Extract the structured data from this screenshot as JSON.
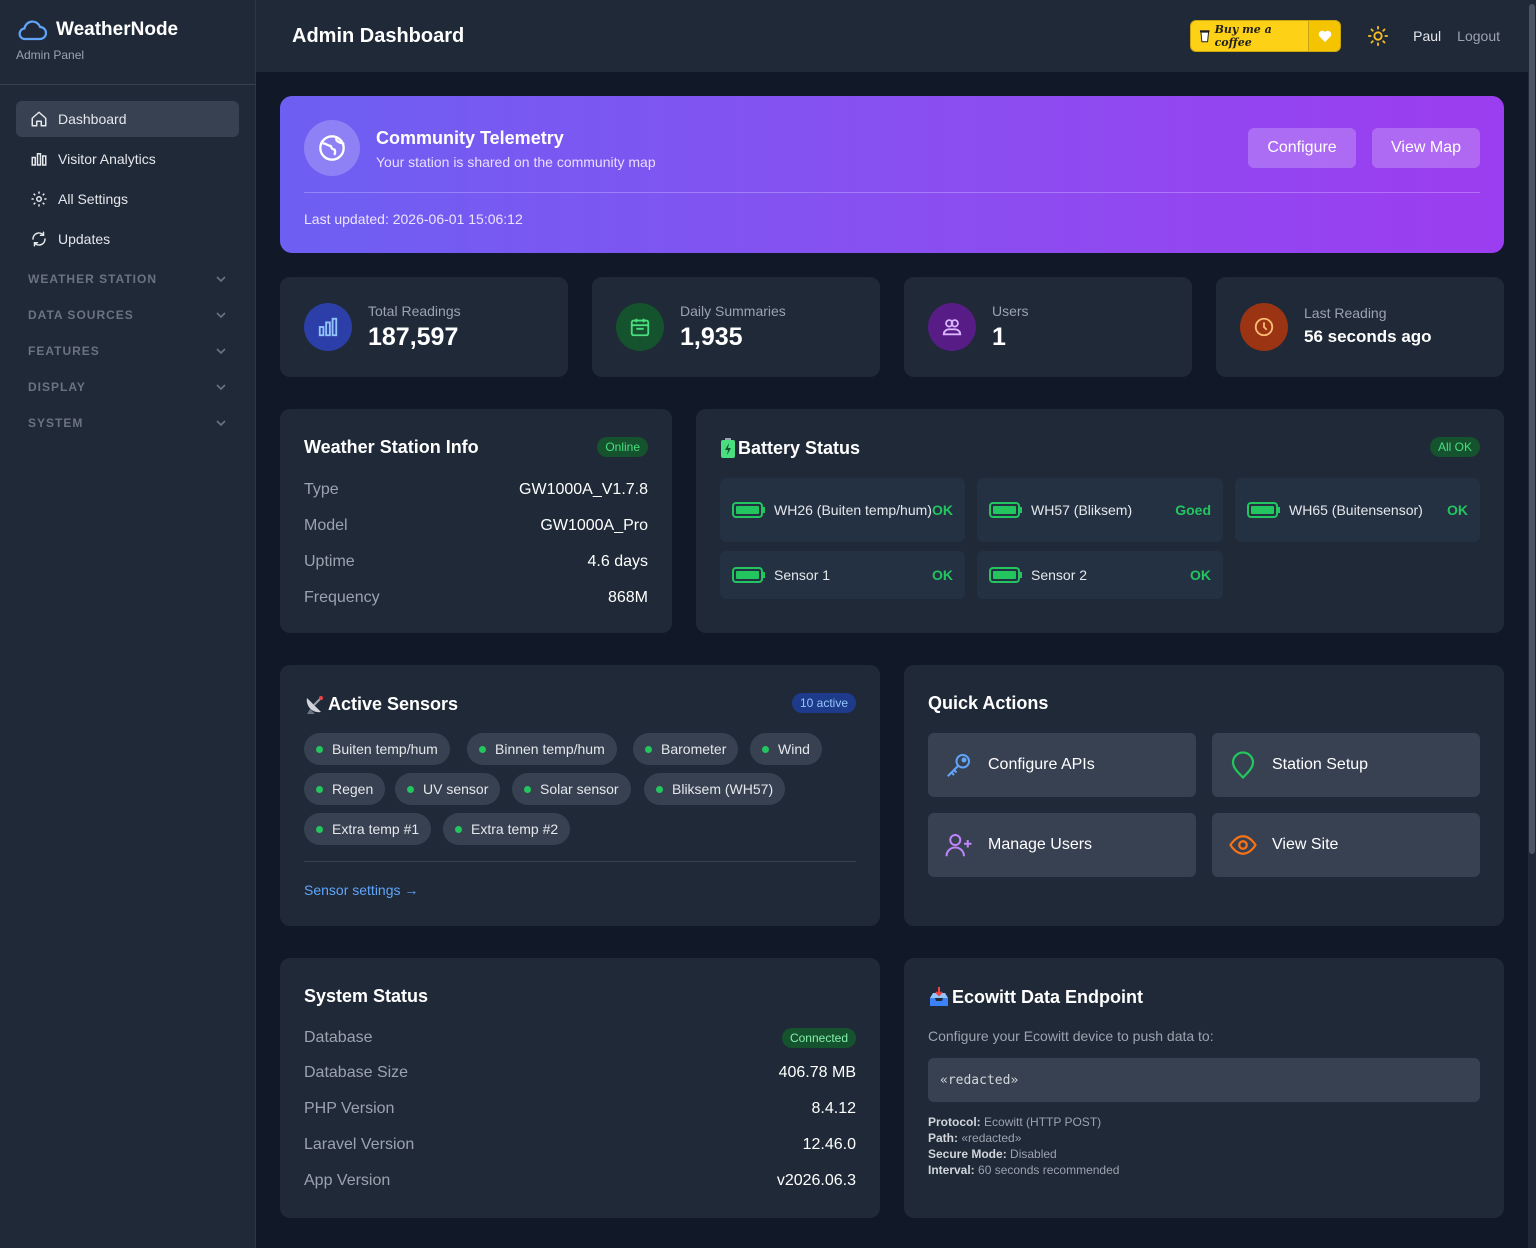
{
  "sidebar": {
    "brand": "WeatherNode",
    "subtitle": "Admin Panel",
    "items": [
      {
        "label": "Dashboard",
        "icon": "home-icon"
      },
      {
        "label": "Visitor Analytics",
        "icon": "chart-icon"
      },
      {
        "label": "All Settings",
        "icon": "gear-icon"
      },
      {
        "label": "Updates",
        "icon": "refresh-icon"
      }
    ],
    "sections": [
      "WEATHER STATION",
      "DATA SOURCES",
      "FEATURES",
      "DISPLAY",
      "SYSTEM"
    ]
  },
  "header": {
    "title": "Admin Dashboard",
    "coffee": "Buy me a coffee",
    "user": "Paul",
    "logout": "Logout"
  },
  "hero": {
    "title": "Community Telemetry",
    "subtitle": "Your station is shared on the community map",
    "configure": "Configure",
    "view_map": "View Map",
    "updated": "Last updated: 2026-06-01 15:06:12"
  },
  "stats": [
    {
      "label": "Total Readings",
      "value": "187,597",
      "color": "#3b5bdb"
    },
    {
      "label": "Daily Summaries",
      "value": "1,935",
      "color": "#15803d"
    },
    {
      "label": "Users",
      "value": "1",
      "color": "#7e22ce"
    },
    {
      "label": "Last Reading",
      "value": "56 seconds ago",
      "color": "#c2410c"
    }
  ],
  "station": {
    "title": "Weather Station Info",
    "status": "Online",
    "rows": [
      {
        "k": "Type",
        "v": "GW1000A_V1.7.8"
      },
      {
        "k": "Model",
        "v": "GW1000A_Pro"
      },
      {
        "k": "Uptime",
        "v": "4.6 days"
      },
      {
        "k": "Frequency",
        "v": "868M"
      }
    ]
  },
  "battery": {
    "title": "Battery Status",
    "badge": "All OK",
    "items": [
      {
        "name": "WH26 (Buiten temp/hum)",
        "status": "OK"
      },
      {
        "name": "WH57 (Bliksem)",
        "status": "Goed"
      },
      {
        "name": "WH65 (Buitensensor)",
        "status": "OK"
      },
      {
        "name": "Sensor 1",
        "status": "OK"
      },
      {
        "name": "Sensor 2",
        "status": "OK"
      }
    ]
  },
  "sensors": {
    "title": "Active Sensors",
    "badge": "10 active",
    "chips": [
      "Buiten temp/hum",
      "Binnen temp/hum",
      "Barometer",
      "Wind",
      "Regen",
      "UV sensor",
      "Solar sensor",
      "Bliksem (WH57)",
      "Extra temp #1",
      "Extra temp #2"
    ],
    "link": "Sensor settings →"
  },
  "quick": {
    "title": "Quick Actions",
    "items": [
      {
        "label": "Configure APIs",
        "icon": "key-icon"
      },
      {
        "label": "Station Setup",
        "icon": "location-pin-icon"
      },
      {
        "label": "Manage Users",
        "icon": "add-user-icon"
      },
      {
        "label": "View Site",
        "icon": "eye-icon"
      }
    ]
  },
  "system": {
    "title": "System Status",
    "db_label": "Database",
    "db_status": "Connected",
    "rows": [
      {
        "k": "Database Size",
        "v": "406.78 MB"
      },
      {
        "k": "PHP Version",
        "v": "8.4.12"
      },
      {
        "k": "Laravel Version",
        "v": "12.46.0"
      },
      {
        "k": "App Version",
        "v": "v2026.06.3"
      }
    ]
  },
  "endpoint": {
    "title": "Ecowitt Data Endpoint",
    "desc": "Configure your Ecowitt device to push data to:",
    "url": "«redacted»",
    "meta": [
      {
        "k": "Protocol:",
        "v": "Ecowitt (HTTP POST)"
      },
      {
        "k": "Path:",
        "v": "«redacted»"
      },
      {
        "k": "Secure Mode:",
        "v": "Disabled"
      },
      {
        "k": "Interval:",
        "v": "60 seconds recommended"
      }
    ]
  }
}
